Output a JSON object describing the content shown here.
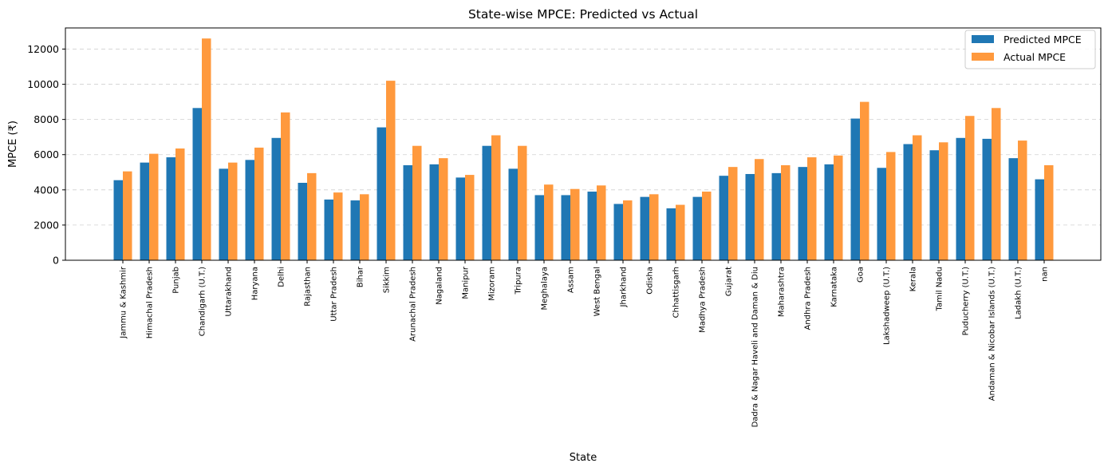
{
  "chart_data": {
    "type": "bar",
    "title": "State-wise MPCE: Predicted vs Actual",
    "xlabel": "State",
    "ylabel": "MPCE (₹)",
    "ylim": [
      0,
      13200
    ],
    "yticks": [
      0,
      2000,
      4000,
      6000,
      8000,
      10000,
      12000
    ],
    "grid": "y-dashed",
    "legend_position": "top-right",
    "categories": [
      "Jammu & Kashmir",
      "Himachal Pradesh",
      "Punjab",
      "Chandigarh (U.T.)",
      "Uttarakhand",
      "Haryana",
      "Delhi",
      "Rajasthan",
      "Uttar Pradesh",
      "Bihar",
      "Sikkim",
      "Arunachal Pradesh",
      "Nagaland",
      "Manipur",
      "Mizoram",
      "Tripura",
      "Meghalaya",
      "Assam",
      "West Bengal",
      "Jharkhand",
      "Odisha",
      "Chhattisgarh",
      "Madhya Pradesh",
      "Gujarat",
      "Dadra & Nagar Haveli and Daman & Diu",
      "Maharashtra",
      "Andhra Pradesh",
      "Karnataka",
      "Goa",
      "Lakshadweep (U.T.)",
      "Kerala",
      "Tamil Nadu",
      "Puducherry (U.T.)",
      "Andaman & Nicobar Islands (U.T.)",
      "Ladakh (U.T.)",
      "nan"
    ],
    "series": [
      {
        "name": "Predicted MPCE",
        "color": "#1f77b4",
        "values": [
          4550,
          5550,
          5850,
          8650,
          5200,
          5700,
          6950,
          4400,
          3450,
          3400,
          7550,
          5400,
          5450,
          4700,
          6500,
          5200,
          3700,
          3700,
          3900,
          3200,
          3600,
          2950,
          3600,
          4800,
          4900,
          4950,
          5300,
          5450,
          8050,
          5250,
          6600,
          6250,
          6950,
          6900,
          5800,
          4600
        ]
      },
      {
        "name": "Actual MPCE",
        "color": "#ff993d",
        "values": [
          5050,
          6050,
          6350,
          12600,
          5550,
          6400,
          8400,
          4950,
          3850,
          3750,
          10200,
          6500,
          5800,
          4850,
          7100,
          6500,
          4300,
          4050,
          4250,
          3400,
          3750,
          3150,
          3900,
          5300,
          5750,
          5400,
          5850,
          5950,
          9000,
          6150,
          7100,
          6700,
          8200,
          8650,
          6800,
          5400
        ]
      }
    ]
  }
}
